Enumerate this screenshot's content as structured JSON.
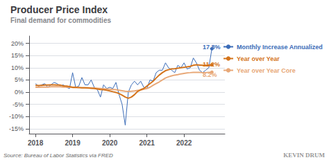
{
  "chart_data": {
    "type": "line",
    "title": "Producer Price Index",
    "subtitle": "Final demand for commodities",
    "source": "Source: Bureau of Labor Statistics via FRED",
    "watermark": "KEVIN DRUM",
    "xlim": [
      2017.83,
      2023.1
    ],
    "xticks": [
      2018,
      2019,
      2020,
      2021,
      2022
    ],
    "ylim": [
      -17,
      23
    ],
    "yticks": [
      {
        "value": -15,
        "label": "-15%"
      },
      {
        "value": -10,
        "label": "-10%"
      },
      {
        "value": -5,
        "label": "-5%"
      },
      {
        "value": 0,
        "label": "0%"
      },
      {
        "value": 5,
        "label": "5%"
      },
      {
        "value": 10,
        "label": "10%"
      },
      {
        "value": 15,
        "label": "15%"
      },
      {
        "value": 20,
        "label": "20%"
      }
    ],
    "grid": true,
    "legend": "right",
    "series": [
      {
        "name": "Monthly Increase Annualized",
        "color": "#3B6CB8",
        "x": [
          2018.0,
          2018.083,
          2018.167,
          2018.25,
          2018.333,
          2018.417,
          2018.5,
          2018.583,
          2018.667,
          2018.75,
          2018.833,
          2018.917,
          2019.0,
          2019.083,
          2019.167,
          2019.25,
          2019.333,
          2019.417,
          2019.5,
          2019.583,
          2019.667,
          2019.75,
          2019.833,
          2019.917,
          2020.0,
          2020.083,
          2020.167,
          2020.25,
          2020.333,
          2020.417,
          2020.5,
          2020.583,
          2020.667,
          2020.75,
          2020.833,
          2020.917,
          2021.0,
          2021.083,
          2021.167,
          2021.25,
          2021.333,
          2021.417,
          2021.5,
          2021.583,
          2021.667,
          2021.75,
          2021.833,
          2021.917,
          2022.0,
          2022.083,
          2022.167,
          2022.25,
          2022.333,
          2022.417,
          2022.5,
          2022.583,
          2022.667,
          2022.75
        ],
        "values": [
          3.5,
          2.5,
          3.0,
          3.5,
          2.0,
          3.0,
          4.0,
          3.5,
          2.5,
          3.0,
          2.0,
          1.5,
          8.0,
          2.0,
          2.5,
          6.0,
          3.0,
          3.0,
          5.0,
          2.0,
          1.0,
          -2.0,
          3.0,
          1.5,
          2.0,
          1.5,
          4.0,
          -1.0,
          -5.0,
          -13.5,
          0.0,
          3.0,
          4.5,
          3.0,
          4.5,
          2.0,
          1.5,
          5.0,
          4.5,
          8.0,
          9.0,
          9.0,
          12.0,
          10.0,
          9.0,
          8.0,
          11.0,
          10.0,
          12.0,
          9.5,
          10.0,
          14.0,
          12.0,
          9.0,
          8.0,
          9.0,
          10.0,
          17.8
        ]
      },
      {
        "name": "Year over Year",
        "color": "#D4741C",
        "x": [
          2018.0,
          2018.083,
          2018.167,
          2018.25,
          2018.333,
          2018.417,
          2018.5,
          2018.583,
          2018.667,
          2018.75,
          2018.833,
          2018.917,
          2019.0,
          2019.083,
          2019.167,
          2019.25,
          2019.333,
          2019.417,
          2019.5,
          2019.583,
          2019.667,
          2019.75,
          2019.833,
          2019.917,
          2020.0,
          2020.083,
          2020.167,
          2020.25,
          2020.333,
          2020.417,
          2020.5,
          2020.583,
          2020.667,
          2020.75,
          2020.833,
          2020.917,
          2021.0,
          2021.083,
          2021.167,
          2021.25,
          2021.333,
          2021.417,
          2021.5,
          2021.583,
          2021.667,
          2021.75,
          2021.833,
          2021.917,
          2022.0,
          2022.083,
          2022.167,
          2022.25,
          2022.333,
          2022.417,
          2022.5,
          2022.583,
          2022.667,
          2022.75
        ],
        "values": [
          2.8,
          2.7,
          2.8,
          2.9,
          2.9,
          3.0,
          3.0,
          2.9,
          2.9,
          2.6,
          2.5,
          2.3,
          2.0,
          2.0,
          1.9,
          1.8,
          1.8,
          1.7,
          1.6,
          1.5,
          1.3,
          1.1,
          1.0,
          0.8,
          0.5,
          0.2,
          -0.1,
          -0.6,
          -1.2,
          -2.0,
          -2.5,
          -2.0,
          -1.0,
          0.3,
          1.0,
          1.5,
          2.5,
          3.5,
          4.5,
          5.8,
          7.0,
          8.0,
          8.8,
          9.2,
          9.5,
          9.6,
          9.8,
          10.0,
          10.2,
          10.4,
          10.6,
          11.0,
          11.2,
          11.1,
          11.0,
          11.0,
          11.1,
          11.2
        ]
      },
      {
        "name": "Year over Year Core",
        "color": "#E8A878",
        "x": [
          2018.0,
          2018.083,
          2018.167,
          2018.25,
          2018.333,
          2018.417,
          2018.5,
          2018.583,
          2018.667,
          2018.75,
          2018.833,
          2018.917,
          2019.0,
          2019.083,
          2019.167,
          2019.25,
          2019.333,
          2019.417,
          2019.5,
          2019.583,
          2019.667,
          2019.75,
          2019.833,
          2019.917,
          2020.0,
          2020.083,
          2020.167,
          2020.25,
          2020.333,
          2020.417,
          2020.5,
          2020.583,
          2020.667,
          2020.75,
          2020.833,
          2020.917,
          2021.0,
          2021.083,
          2021.167,
          2021.25,
          2021.333,
          2021.417,
          2021.5,
          2021.583,
          2021.667,
          2021.75,
          2021.833,
          2021.917,
          2022.0,
          2022.083,
          2022.167,
          2022.25,
          2022.333,
          2022.417,
          2022.5,
          2022.583,
          2022.667,
          2022.75
        ],
        "values": [
          2.0,
          2.0,
          2.1,
          2.1,
          2.1,
          2.2,
          2.2,
          2.2,
          2.2,
          2.1,
          2.1,
          2.0,
          1.9,
          1.9,
          1.9,
          1.8,
          1.8,
          1.8,
          1.7,
          1.7,
          1.6,
          1.5,
          1.4,
          1.3,
          1.2,
          1.1,
          1.0,
          0.8,
          0.6,
          0.4,
          0.3,
          0.4,
          0.5,
          0.7,
          0.9,
          1.2,
          1.5,
          2.0,
          2.8,
          3.5,
          4.2,
          5.0,
          5.8,
          6.3,
          6.7,
          7.0,
          7.2,
          7.5,
          7.7,
          7.9,
          8.0,
          8.1,
          8.1,
          8.1,
          8.0,
          8.0,
          8.1,
          8.2
        ]
      }
    ],
    "annotations": [
      {
        "text": "17.8%",
        "x": 2022.5,
        "y": 18.6,
        "color": "#3B6CB8"
      },
      {
        "text": "11.2%",
        "x": 2022.5,
        "y": 11.5,
        "color": "#D4741C"
      },
      {
        "text": "8.2%",
        "x": 2022.5,
        "y": 7.2,
        "color": "#E8A878"
      }
    ]
  }
}
